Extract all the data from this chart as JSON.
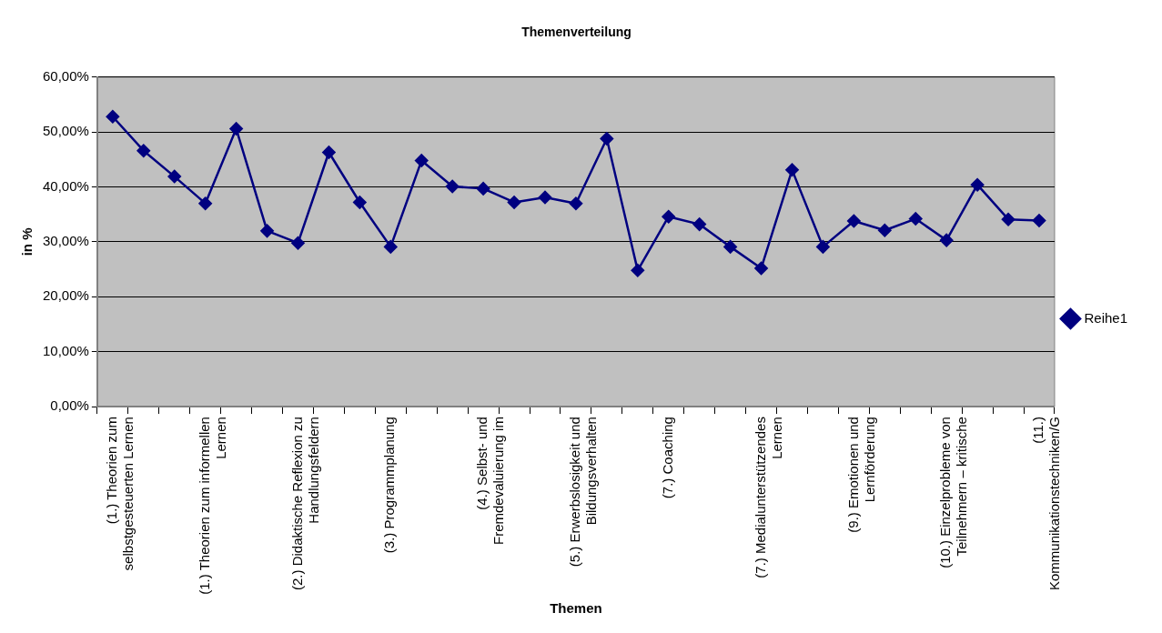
{
  "chart_data": {
    "type": "line",
    "title": "Themenverteilung",
    "xlabel": "Themen",
    "ylabel": "in %",
    "categories": [
      "(1.) Theorien zum selbstgesteuerten Lernen",
      null,
      null,
      "(1.) Theorien zum informellen Lernen",
      null,
      null,
      "(2.) Didaktische Reflexion zu Handlungsfeldern",
      null,
      null,
      "(3.) Programmplanung",
      null,
      null,
      "(4.) Selbst- und Fremdevaluierung im",
      null,
      null,
      "(5.) Erwerbslosigkeit und Bildungsverhalten",
      null,
      null,
      "(7.) Coaching",
      null,
      null,
      "(7.) Medialunterstützendes Lernen",
      null,
      null,
      "(9.) Emotionen und Lernförderung",
      null,
      null,
      "(10.) Einzelprobleme von Teilnehmern – kritische",
      null,
      null,
      "(11.) Kommunikationstechniken/G"
    ],
    "series": [
      {
        "name": "Reihe1",
        "color": "#000080",
        "values": [
          52.8,
          46.6,
          41.9,
          37.0,
          50.6,
          32.0,
          29.8,
          46.3,
          37.2,
          29.1,
          44.8,
          40.1,
          39.7,
          37.2,
          38.1,
          37.0,
          48.8,
          24.8,
          34.6,
          33.2,
          29.1,
          25.2,
          43.1,
          29.1,
          33.8,
          32.1,
          34.2,
          30.3,
          40.4,
          34.1,
          33.9
        ]
      }
    ],
    "ylim": [
      0,
      60
    ],
    "yticks": [
      {
        "value": 0,
        "label": "0,00%"
      },
      {
        "value": 10,
        "label": "10,00%"
      },
      {
        "value": 20,
        "label": "20,00%"
      },
      {
        "value": 30,
        "label": "30,00%"
      },
      {
        "value": 40,
        "label": "40,00%"
      },
      {
        "value": 50,
        "label": "50,00%"
      },
      {
        "value": 60,
        "label": "60,00%"
      }
    ],
    "grid": "y",
    "legend": "right",
    "marker": "diamond",
    "line_style": "solid"
  }
}
